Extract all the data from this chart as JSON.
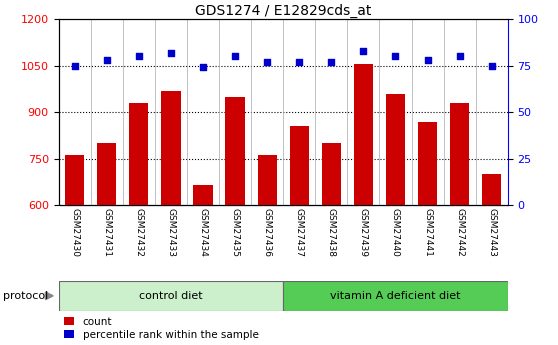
{
  "title": "GDS1274 / E12829cds_at",
  "categories": [
    "GSM27430",
    "GSM27431",
    "GSM27432",
    "GSM27433",
    "GSM27434",
    "GSM27435",
    "GSM27436",
    "GSM27437",
    "GSM27438",
    "GSM27439",
    "GSM27440",
    "GSM27441",
    "GSM27442",
    "GSM27443"
  ],
  "counts": [
    762,
    800,
    930,
    967,
    665,
    950,
    762,
    855,
    800,
    1055,
    958,
    868,
    930,
    700
  ],
  "percentile_ranks": [
    75,
    78,
    80,
    82,
    74,
    80,
    77,
    77,
    77,
    83,
    80,
    78,
    80,
    75
  ],
  "ylim_left": [
    600,
    1200
  ],
  "ylim_right": [
    0,
    100
  ],
  "yticks_left": [
    600,
    750,
    900,
    1050,
    1200
  ],
  "yticks_right": [
    0,
    25,
    50,
    75,
    100
  ],
  "bar_color": "#CC0000",
  "dot_color": "#0000CC",
  "n_control": 7,
  "n_vitamin": 7,
  "control_label": "control diet",
  "vitamin_label": "vitamin A deficient diet",
  "protocol_label": "protocol",
  "legend_count": "count",
  "legend_percentile": "percentile rank within the sample",
  "control_bg": "#ccf0cc",
  "vitamin_bg": "#55cc55",
  "tick_area_bg": "#c8c8c8"
}
